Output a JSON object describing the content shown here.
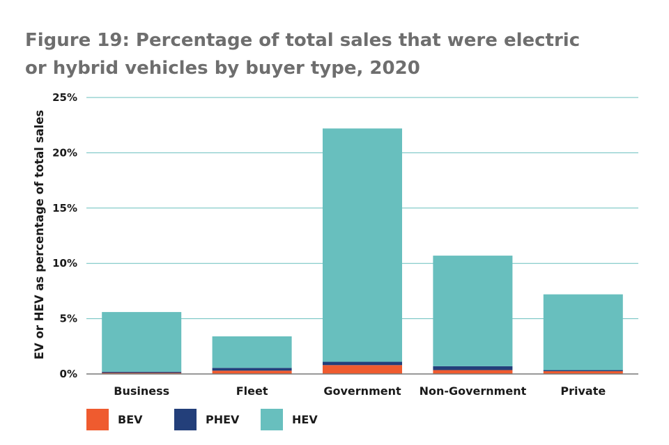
{
  "chart_data": {
    "type": "bar",
    "stacked": true,
    "title_line1": "Figure 19: Percentage of total sales that were electric",
    "title_line2": "or hybrid vehicles by buyer type, 2020",
    "xlabel": "",
    "ylabel": "EV or HEV as percentage of total sales",
    "categories": [
      "Business",
      "Fleet",
      "Government",
      "Non-Government",
      "Private"
    ],
    "series": [
      {
        "name": "BEV",
        "color": "#ef5b2f",
        "values": [
          0.1,
          0.3,
          0.8,
          0.35,
          0.25
        ]
      },
      {
        "name": "PHEV",
        "color": "#233f7a",
        "values": [
          0.1,
          0.25,
          0.3,
          0.35,
          0.1
        ]
      },
      {
        "name": "HEV",
        "color": "#68bfbe",
        "values": [
          5.4,
          2.85,
          21.1,
          10.0,
          6.85
        ]
      }
    ],
    "ylim": [
      0,
      25
    ],
    "yticks": [
      0,
      5,
      10,
      15,
      20,
      25
    ],
    "ytick_labels": [
      "0%",
      "5%",
      "10%",
      "15%",
      "20%",
      "25%"
    ],
    "grid": true,
    "grid_color": "#68bfbe",
    "legend_position": "bottom-left"
  }
}
